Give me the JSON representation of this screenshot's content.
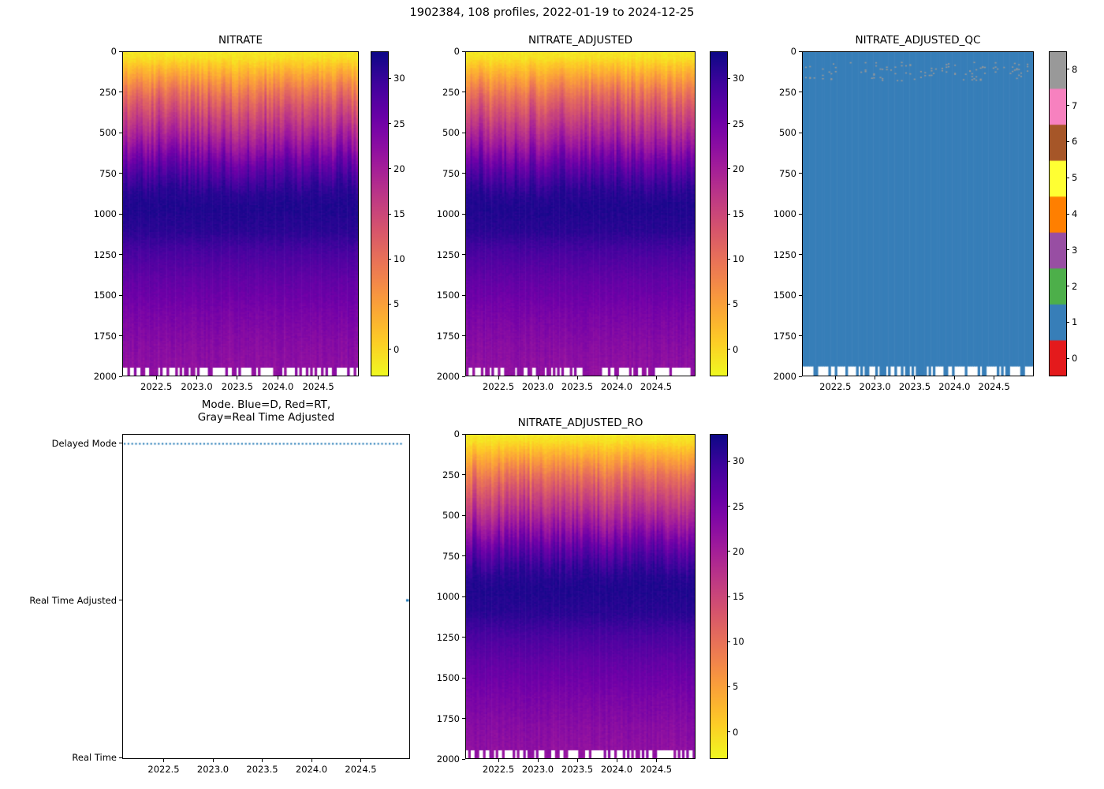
{
  "figure": {
    "title": "1902384, 108 profiles, 2022-01-19 to 2024-12-25"
  },
  "chart_data": {
    "type": "heatmap",
    "n_profiles": 108,
    "x_range": [
      2022.08,
      2025.0
    ],
    "x_ticks": [
      2022.5,
      2023.0,
      2023.5,
      2024.0,
      2024.5
    ],
    "x_tick_labels": [
      "2022.5",
      "2023.0",
      "2023.5",
      "2024.0",
      "2024.5"
    ],
    "depth_range": [
      0,
      2000
    ],
    "depth_ticks": [
      0,
      250,
      500,
      750,
      1000,
      1250,
      1500,
      1750,
      2000
    ],
    "colormap": {
      "name": "plasma_r",
      "vmin": -3,
      "vmax": 33
    },
    "nitrate_depth_profile": {
      "description": "Approximate nitrate value vs depth profile shared by all 108 profiles; per-profile jitter in upper 1100 m",
      "depths": [
        0,
        30,
        60,
        100,
        150,
        200,
        250,
        350,
        450,
        550,
        650,
        750,
        850,
        950,
        1100,
        1250,
        1400,
        1600,
        1800,
        2000
      ],
      "values": [
        -1.5,
        -1,
        0.5,
        2.5,
        5,
        7.5,
        10,
        14,
        17.5,
        21,
        25,
        28.5,
        31,
        31.8,
        31,
        28.5,
        26.5,
        24.5,
        23,
        22
      ]
    },
    "heatmaps": [
      {
        "title": "NITRATE",
        "colorbar_ticks": [
          0,
          5,
          10,
          15,
          20,
          25,
          30
        ]
      },
      {
        "title": "NITRATE_ADJUSTED",
        "colorbar_ticks": [
          0,
          5,
          10,
          15,
          20,
          25,
          30
        ]
      },
      {
        "title": "NITRATE_ADJUSTED_QC",
        "colorbar_ticks": [
          0,
          1,
          2,
          3,
          4,
          5,
          6,
          7,
          8
        ],
        "qc_colors": [
          "#e41a1c",
          "#377eb8",
          "#4daf4a",
          "#984ea3",
          "#ff7f00",
          "#ffff33",
          "#a65628",
          "#f781bf",
          "#999999"
        ],
        "dominant_value": 1,
        "sparse_value": 8,
        "sparse_depth_range": [
          60,
          175
        ]
      },
      {
        "title": "NITRATE_ADJUSTED_RO",
        "colorbar_ticks": [
          0,
          5,
          10,
          15,
          20,
          25,
          30
        ]
      }
    ],
    "mode_plot": {
      "title_line1": "Mode. Blue=D, Red=RT,",
      "title_line2": "Gray=Real Time Adjusted",
      "categories": [
        "Delayed Mode",
        "Real Time Adjusted",
        "Real Time"
      ],
      "line_color": "#1f77b4",
      "delayed_mode_span": [
        2022.08,
        2024.93
      ],
      "real_time_adjusted_x": 2024.98
    }
  }
}
